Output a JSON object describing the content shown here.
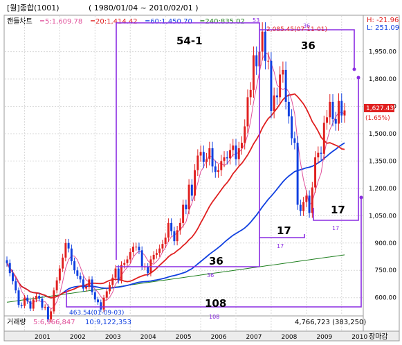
{
  "header": {
    "title": "[월]종합(1001)",
    "range": "( 1980/01/04 ~ 2010/02/01 )",
    "legend_label": "캔들차트",
    "ma_legend": [
      {
        "text": "5:1,609.78",
        "color": "#e0509a"
      },
      {
        "text": "20:1,414.42",
        "color": "#e02020"
      },
      {
        "text": "60:1,450.70",
        "color": "#1040e0"
      },
      {
        "text": "240:835.02",
        "color": "#208020"
      }
    ],
    "high_low": {
      "high": "H: -21.96",
      "low": "L: 251.09"
    }
  },
  "price_axis": {
    "ticks": [
      "1,950.00",
      "1,800.00",
      "1,650.00",
      "1,500.00",
      "1,350.00",
      "1,200.00",
      "1,050.00",
      "900.00",
      "750.00",
      "600.00"
    ],
    "current_price": "1,627.43",
    "current_change": "(1.65%)"
  },
  "annotations": {
    "peak_label": "2,085.45(07-11-01)",
    "low_label": "463.54(01-09-03)",
    "wave_labels": [
      "54-1",
      "36",
      "36",
      "17",
      "17",
      "108"
    ],
    "small_labels": [
      "53",
      "36",
      "36",
      "17",
      "17",
      "108"
    ]
  },
  "volume_panel": {
    "label": "거래량",
    "ma5": "5:6,966,847",
    "ma10": "10:9,122,353",
    "current": "4,766,723 (383,250)"
  },
  "x_axis": {
    "years": [
      "2001",
      "2002",
      "2003",
      "2004",
      "2005",
      "2006",
      "2007",
      "2008",
      "2009",
      "2010"
    ],
    "footer_right": "장마감"
  },
  "chart_data": {
    "type": "candlestick",
    "title": "[월]종합(1001)",
    "period": "monthly",
    "y_axis": {
      "ylim": [
        500,
        2150
      ],
      "unit": "index points"
    },
    "x_axis": {
      "range": [
        "2000-07",
        "2010-02"
      ]
    },
    "moving_averages": [
      {
        "name": "5",
        "last": 1609.78
      },
      {
        "name": "20",
        "last": 1414.42
      },
      {
        "name": "60",
        "last": 1450.7
      },
      {
        "name": "240",
        "last": 835.02
      }
    ],
    "monthly_close": [
      {
        "x": "2000-07",
        "y": 790
      },
      {
        "x": "2000-08",
        "y": 735
      },
      {
        "x": "2000-09",
        "y": 690
      },
      {
        "x": "2000-10",
        "y": 640
      },
      {
        "x": "2000-11",
        "y": 560
      },
      {
        "x": "2000-12",
        "y": 555
      },
      {
        "x": "2001-01",
        "y": 600
      },
      {
        "x": "2001-02",
        "y": 580
      },
      {
        "x": "2001-03",
        "y": 540
      },
      {
        "x": "2001-04",
        "y": 590
      },
      {
        "x": "2001-05",
        "y": 610
      },
      {
        "x": "2001-06",
        "y": 595
      },
      {
        "x": "2001-07",
        "y": 545
      },
      {
        "x": "2001-08",
        "y": 550
      },
      {
        "x": "2001-09",
        "y": 480
      },
      {
        "x": "2001-10",
        "y": 525
      },
      {
        "x": "2001-11",
        "y": 640
      },
      {
        "x": "2001-12",
        "y": 695
      },
      {
        "x": "2002-01",
        "y": 760
      },
      {
        "x": "2002-02",
        "y": 820
      },
      {
        "x": "2002-03",
        "y": 900
      },
      {
        "x": "2002-04",
        "y": 870
      },
      {
        "x": "2002-05",
        "y": 800
      },
      {
        "x": "2002-06",
        "y": 750
      },
      {
        "x": "2002-07",
        "y": 720
      },
      {
        "x": "2002-08",
        "y": 700
      },
      {
        "x": "2002-09",
        "y": 650
      },
      {
        "x": "2002-10",
        "y": 660
      },
      {
        "x": "2002-11",
        "y": 700
      },
      {
        "x": "2002-12",
        "y": 630
      },
      {
        "x": "2003-01",
        "y": 590
      },
      {
        "x": "2003-02",
        "y": 575
      },
      {
        "x": "2003-03",
        "y": 535
      },
      {
        "x": "2003-04",
        "y": 600
      },
      {
        "x": "2003-05",
        "y": 635
      },
      {
        "x": "2003-06",
        "y": 670
      },
      {
        "x": "2003-07",
        "y": 710
      },
      {
        "x": "2003-08",
        "y": 760
      },
      {
        "x": "2003-09",
        "y": 695
      },
      {
        "x": "2003-10",
        "y": 780
      },
      {
        "x": "2003-11",
        "y": 790
      },
      {
        "x": "2003-12",
        "y": 810
      },
      {
        "x": "2004-01",
        "y": 850
      },
      {
        "x": "2004-02",
        "y": 880
      },
      {
        "x": "2004-03",
        "y": 880
      },
      {
        "x": "2004-04",
        "y": 860
      },
      {
        "x": "2004-05",
        "y": 770
      },
      {
        "x": "2004-06",
        "y": 770
      },
      {
        "x": "2004-07",
        "y": 735
      },
      {
        "x": "2004-08",
        "y": 810
      },
      {
        "x": "2004-09",
        "y": 835
      },
      {
        "x": "2004-10",
        "y": 845
      },
      {
        "x": "2004-11",
        "y": 870
      },
      {
        "x": "2004-12",
        "y": 895
      },
      {
        "x": "2005-01",
        "y": 930
      },
      {
        "x": "2005-02",
        "y": 1010
      },
      {
        "x": "2005-03",
        "y": 965
      },
      {
        "x": "2005-04",
        "y": 910
      },
      {
        "x": "2005-05",
        "y": 970
      },
      {
        "x": "2005-06",
        "y": 1010
      },
      {
        "x": "2005-07",
        "y": 1110
      },
      {
        "x": "2005-08",
        "y": 1085
      },
      {
        "x": "2005-09",
        "y": 1220
      },
      {
        "x": "2005-10",
        "y": 1160
      },
      {
        "x": "2005-11",
        "y": 1300
      },
      {
        "x": "2005-12",
        "y": 1380
      },
      {
        "x": "2006-01",
        "y": 1400
      },
      {
        "x": "2006-02",
        "y": 1345
      },
      {
        "x": "2006-03",
        "y": 1360
      },
      {
        "x": "2006-04",
        "y": 1420
      },
      {
        "x": "2006-05",
        "y": 1320
      },
      {
        "x": "2006-06",
        "y": 1290
      },
      {
        "x": "2006-07",
        "y": 1300
      },
      {
        "x": "2006-08",
        "y": 1350
      },
      {
        "x": "2006-09",
        "y": 1370
      },
      {
        "x": "2006-10",
        "y": 1365
      },
      {
        "x": "2006-11",
        "y": 1410
      },
      {
        "x": "2006-12",
        "y": 1435
      },
      {
        "x": "2007-01",
        "y": 1360
      },
      {
        "x": "2007-02",
        "y": 1420
      },
      {
        "x": "2007-03",
        "y": 1450
      },
      {
        "x": "2007-04",
        "y": 1540
      },
      {
        "x": "2007-05",
        "y": 1700
      },
      {
        "x": "2007-06",
        "y": 1740
      },
      {
        "x": "2007-07",
        "y": 1930
      },
      {
        "x": "2007-08",
        "y": 1870
      },
      {
        "x": "2007-09",
        "y": 1950
      },
      {
        "x": "2007-10",
        "y": 2060
      },
      {
        "x": "2007-11",
        "y": 1900
      },
      {
        "x": "2007-12",
        "y": 1900
      },
      {
        "x": "2008-01",
        "y": 1625
      },
      {
        "x": "2008-02",
        "y": 1710
      },
      {
        "x": "2008-03",
        "y": 1700
      },
      {
        "x": "2008-04",
        "y": 1825
      },
      {
        "x": "2008-05",
        "y": 1850
      },
      {
        "x": "2008-06",
        "y": 1675
      },
      {
        "x": "2008-07",
        "y": 1595
      },
      {
        "x": "2008-08",
        "y": 1475
      },
      {
        "x": "2008-09",
        "y": 1450
      },
      {
        "x": "2008-10",
        "y": 1110
      },
      {
        "x": "2008-11",
        "y": 1075
      },
      {
        "x": "2008-12",
        "y": 1125
      },
      {
        "x": "2009-01",
        "y": 1160
      },
      {
        "x": "2009-02",
        "y": 1065
      },
      {
        "x": "2009-03",
        "y": 1205
      },
      {
        "x": "2009-04",
        "y": 1370
      },
      {
        "x": "2009-05",
        "y": 1395
      },
      {
        "x": "2009-06",
        "y": 1390
      },
      {
        "x": "2009-07",
        "y": 1560
      },
      {
        "x": "2009-08",
        "y": 1590
      },
      {
        "x": "2009-09",
        "y": 1675
      },
      {
        "x": "2009-10",
        "y": 1580
      },
      {
        "x": "2009-11",
        "y": 1555
      },
      {
        "x": "2009-12",
        "y": 1680
      },
      {
        "x": "2010-01",
        "y": 1600
      },
      {
        "x": "2010-02",
        "y": 1627.43
      }
    ],
    "extremes": [
      {
        "label": "2,085.45(07-11-01)",
        "x": "2007-11",
        "y": 2085.45
      },
      {
        "label": "463.54(01-09-03)",
        "x": "2001-09",
        "y": 463.54
      }
    ]
  }
}
